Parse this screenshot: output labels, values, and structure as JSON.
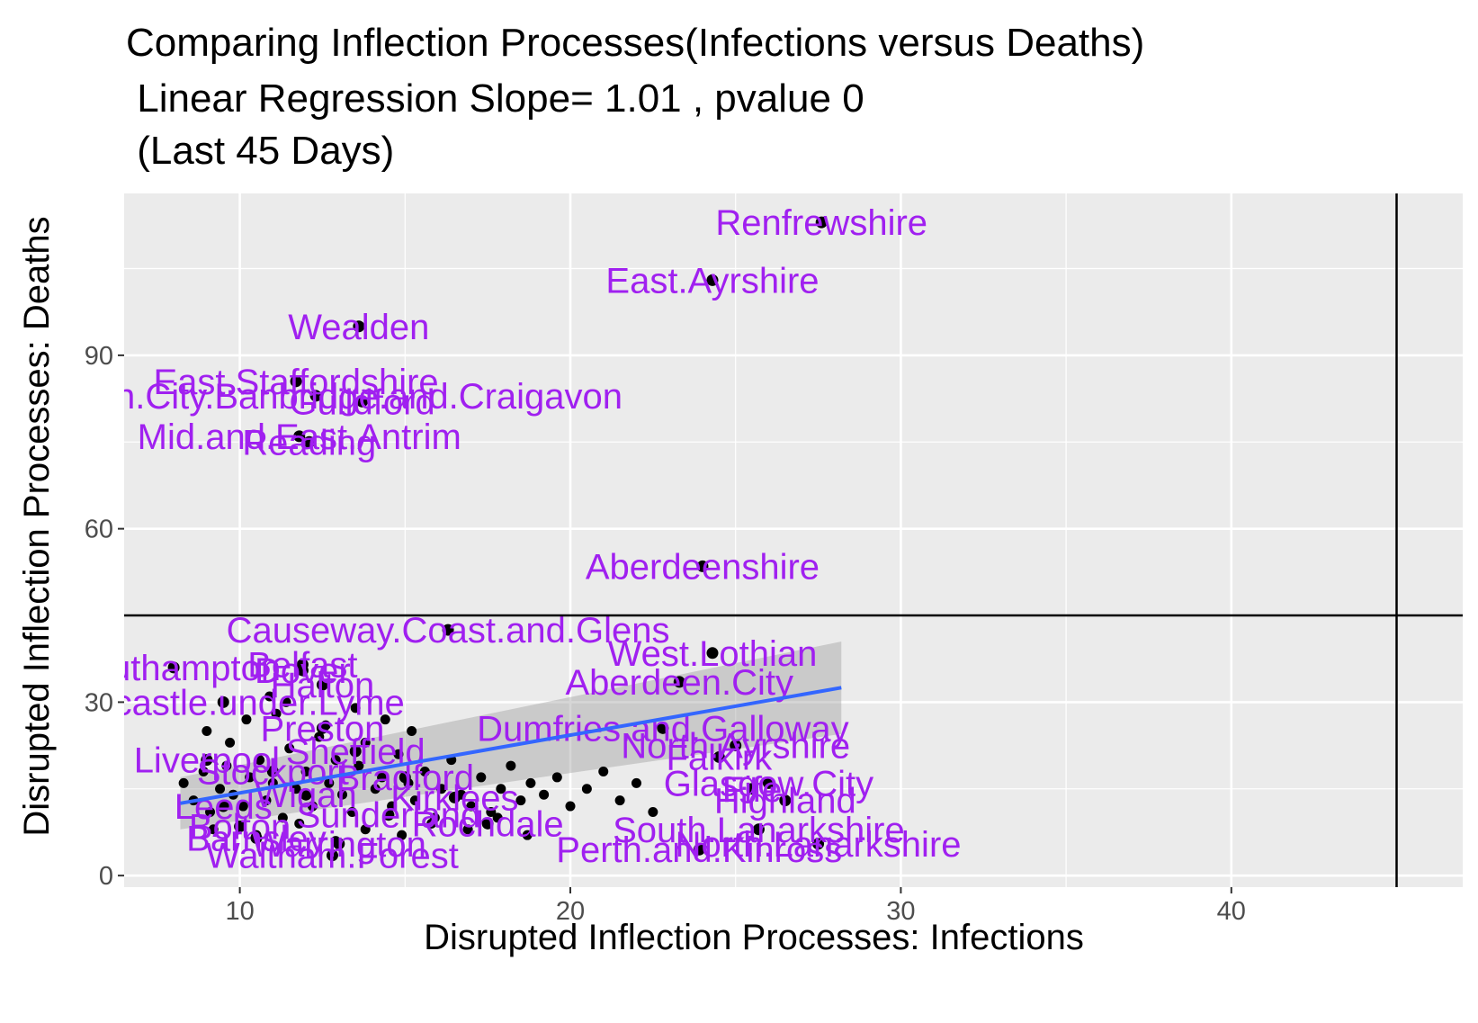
{
  "title_lines": [
    "Comparing Inflection Processes(Infections versus Deaths)",
    " Linear Regression Slope= 1.01 , pvalue 0",
    " (Last 45 Days)"
  ],
  "colors": {
    "panel": "#ebebeb",
    "grid_major": "#ffffff",
    "label": "#a020f0",
    "point": "#000000",
    "fit_line": "#3366ff",
    "ci_band": "#999999",
    "reference_line": "#000000"
  },
  "chart_data": {
    "type": "scatter",
    "title": "Comparing Inflection Processes(Infections versus Deaths)\n Linear Regression Slope= 1.01 , pvalue 0\n (Last 45 Days)",
    "xlabel": "Disrupted Inflection Processes: Infections",
    "ylabel": "Disrupted Inflection Processes: Deaths",
    "xlim": [
      6.5,
      47
    ],
    "ylim": [
      -2,
      118
    ],
    "x_ticks": [
      10,
      20,
      30,
      40
    ],
    "y_ticks": [
      0,
      30,
      60,
      90
    ],
    "grid": true,
    "reference_lines": {
      "vertical_x": 45,
      "horizontal_y": 45
    },
    "regression": {
      "x_range": [
        8.2,
        28.2
      ],
      "y_start": 12.5,
      "y_end": 32.5,
      "ci_low_end": 24.5,
      "ci_high_end": 40.5,
      "ci_low_start": 8.0,
      "ci_high_start": 17.0
    },
    "labeled_points": [
      {
        "x": 27.6,
        "y": 113,
        "label": "Renfrewshire"
      },
      {
        "x": 24.3,
        "y": 103,
        "label": "East.Ayrshire"
      },
      {
        "x": 13.6,
        "y": 95,
        "label": "Wealden"
      },
      {
        "x": 11.7,
        "y": 85.5,
        "label": "East.Staffordshire"
      },
      {
        "x": 12.3,
        "y": 83,
        "label": "Armagh.City.Banbridge.and.Craigavon"
      },
      {
        "x": 13.7,
        "y": 82,
        "label": "Guildford"
      },
      {
        "x": 11.8,
        "y": 76,
        "label": "Mid.and.East.Antrim"
      },
      {
        "x": 12.1,
        "y": 75,
        "label": "Reading"
      },
      {
        "x": 24,
        "y": 53.5,
        "label": "Aberdeenshire"
      },
      {
        "x": 16.3,
        "y": 42.5,
        "label": "Causeway.Coast.and.Glens"
      },
      {
        "x": 24.3,
        "y": 38.5,
        "label": "West.Lothian"
      },
      {
        "x": 23.3,
        "y": 33.5,
        "label": "Aberdeen.City"
      },
      {
        "x": 8.0,
        "y": 36,
        "label": "Southampton"
      },
      {
        "x": 11.9,
        "y": 36.5,
        "label": "Belfast"
      },
      {
        "x": 11.9,
        "y": 35.5,
        "label": "Dover"
      },
      {
        "x": 12.5,
        "y": 33,
        "label": "Halton"
      },
      {
        "x": 9.5,
        "y": 30,
        "label": "Newcastle.under.Lyme"
      },
      {
        "x": 22.8,
        "y": 25.5,
        "label": "Dumfries.and.Galloway"
      },
      {
        "x": 25,
        "y": 22.5,
        "label": "North.Ayrshire"
      },
      {
        "x": 24.5,
        "y": 20.5,
        "label": "Falkirk"
      },
      {
        "x": 26,
        "y": 16,
        "label": "Glasgow.City"
      },
      {
        "x": 25.5,
        "y": 15,
        "label": "Fife"
      },
      {
        "x": 26.5,
        "y": 13,
        "label": "Highland"
      },
      {
        "x": 25.7,
        "y": 8,
        "label": "South.Lanarkshire"
      },
      {
        "x": 27.5,
        "y": 5.5,
        "label": "North.Lanarkshire"
      },
      {
        "x": 23.9,
        "y": 4.5,
        "label": "Perth.and.Kinross"
      },
      {
        "x": 12.8,
        "y": 3.5,
        "label": "Waltham.Forest"
      },
      {
        "x": 10.5,
        "y": 6.5,
        "label": "Barnsley"
      },
      {
        "x": 13.0,
        "y": 5.5,
        "label": "Warrington"
      },
      {
        "x": 11,
        "y": 18,
        "label": "Stockport"
      },
      {
        "x": 12,
        "y": 14,
        "label": "Wigan"
      },
      {
        "x": 9.5,
        "y": 12,
        "label": "Leeds"
      },
      {
        "x": 14.5,
        "y": 10.5,
        "label": "Sunderland"
      },
      {
        "x": 13.5,
        "y": 21.5,
        "label": "Sheffield"
      },
      {
        "x": 10,
        "y": 8.5,
        "label": "Bolton"
      },
      {
        "x": 15,
        "y": 17,
        "label": "Bradford"
      },
      {
        "x": 16.5,
        "y": 13.5,
        "label": "Kirklees"
      },
      {
        "x": 12.5,
        "y": 25.5,
        "label": "Preston"
      },
      {
        "x": 17.5,
        "y": 9,
        "label": "Rochdale"
      },
      {
        "x": 9,
        "y": 20,
        "label": "Liverpool"
      }
    ],
    "cluster_points": [
      [
        8.3,
        16
      ],
      [
        8.6,
        13
      ],
      [
        8.9,
        18
      ],
      [
        9.1,
        11
      ],
      [
        9.4,
        15
      ],
      [
        9.6,
        19
      ],
      [
        9.8,
        14
      ],
      [
        10.1,
        12
      ],
      [
        10.3,
        17
      ],
      [
        10.6,
        20
      ],
      [
        10.8,
        13
      ],
      [
        11.0,
        16
      ],
      [
        11.3,
        10
      ],
      [
        11.5,
        22
      ],
      [
        11.7,
        15
      ],
      [
        12.0,
        18
      ],
      [
        12.2,
        12
      ],
      [
        12.4,
        24
      ],
      [
        12.7,
        16
      ],
      [
        12.9,
        20
      ],
      [
        13.1,
        14
      ],
      [
        13.4,
        11
      ],
      [
        13.6,
        19
      ],
      [
        13.8,
        23
      ],
      [
        14.1,
        15
      ],
      [
        14.3,
        17
      ],
      [
        14.6,
        12
      ],
      [
        14.8,
        21
      ],
      [
        15.1,
        16
      ],
      [
        15.3,
        13
      ],
      [
        15.6,
        18
      ],
      [
        15.9,
        10
      ],
      [
        16.1,
        15
      ],
      [
        16.4,
        20
      ],
      [
        16.7,
        14
      ],
      [
        17.0,
        12
      ],
      [
        17.3,
        17
      ],
      [
        17.6,
        11
      ],
      [
        17.9,
        15
      ],
      [
        18.2,
        19
      ],
      [
        18.5,
        13
      ],
      [
        18.8,
        16
      ],
      [
        19.2,
        14
      ],
      [
        19.6,
        17
      ],
      [
        20.0,
        12
      ],
      [
        20.5,
        15
      ],
      [
        21.0,
        18
      ],
      [
        21.5,
        13
      ],
      [
        22.0,
        16
      ],
      [
        22.5,
        11
      ],
      [
        9.2,
        8
      ],
      [
        10.5,
        7
      ],
      [
        11.8,
        9
      ],
      [
        12.9,
        6
      ],
      [
        13.8,
        8
      ],
      [
        14.9,
        7
      ],
      [
        15.8,
        9
      ],
      [
        16.9,
        8
      ],
      [
        17.8,
        10
      ],
      [
        18.7,
        7
      ],
      [
        9.0,
        25
      ],
      [
        10.2,
        27
      ],
      [
        11.1,
        28
      ],
      [
        12.6,
        26
      ],
      [
        13.5,
        29
      ],
      [
        14.4,
        27
      ],
      [
        15.2,
        25
      ],
      [
        10.9,
        31
      ],
      [
        11.4,
        30
      ],
      [
        9.7,
        23
      ]
    ]
  }
}
